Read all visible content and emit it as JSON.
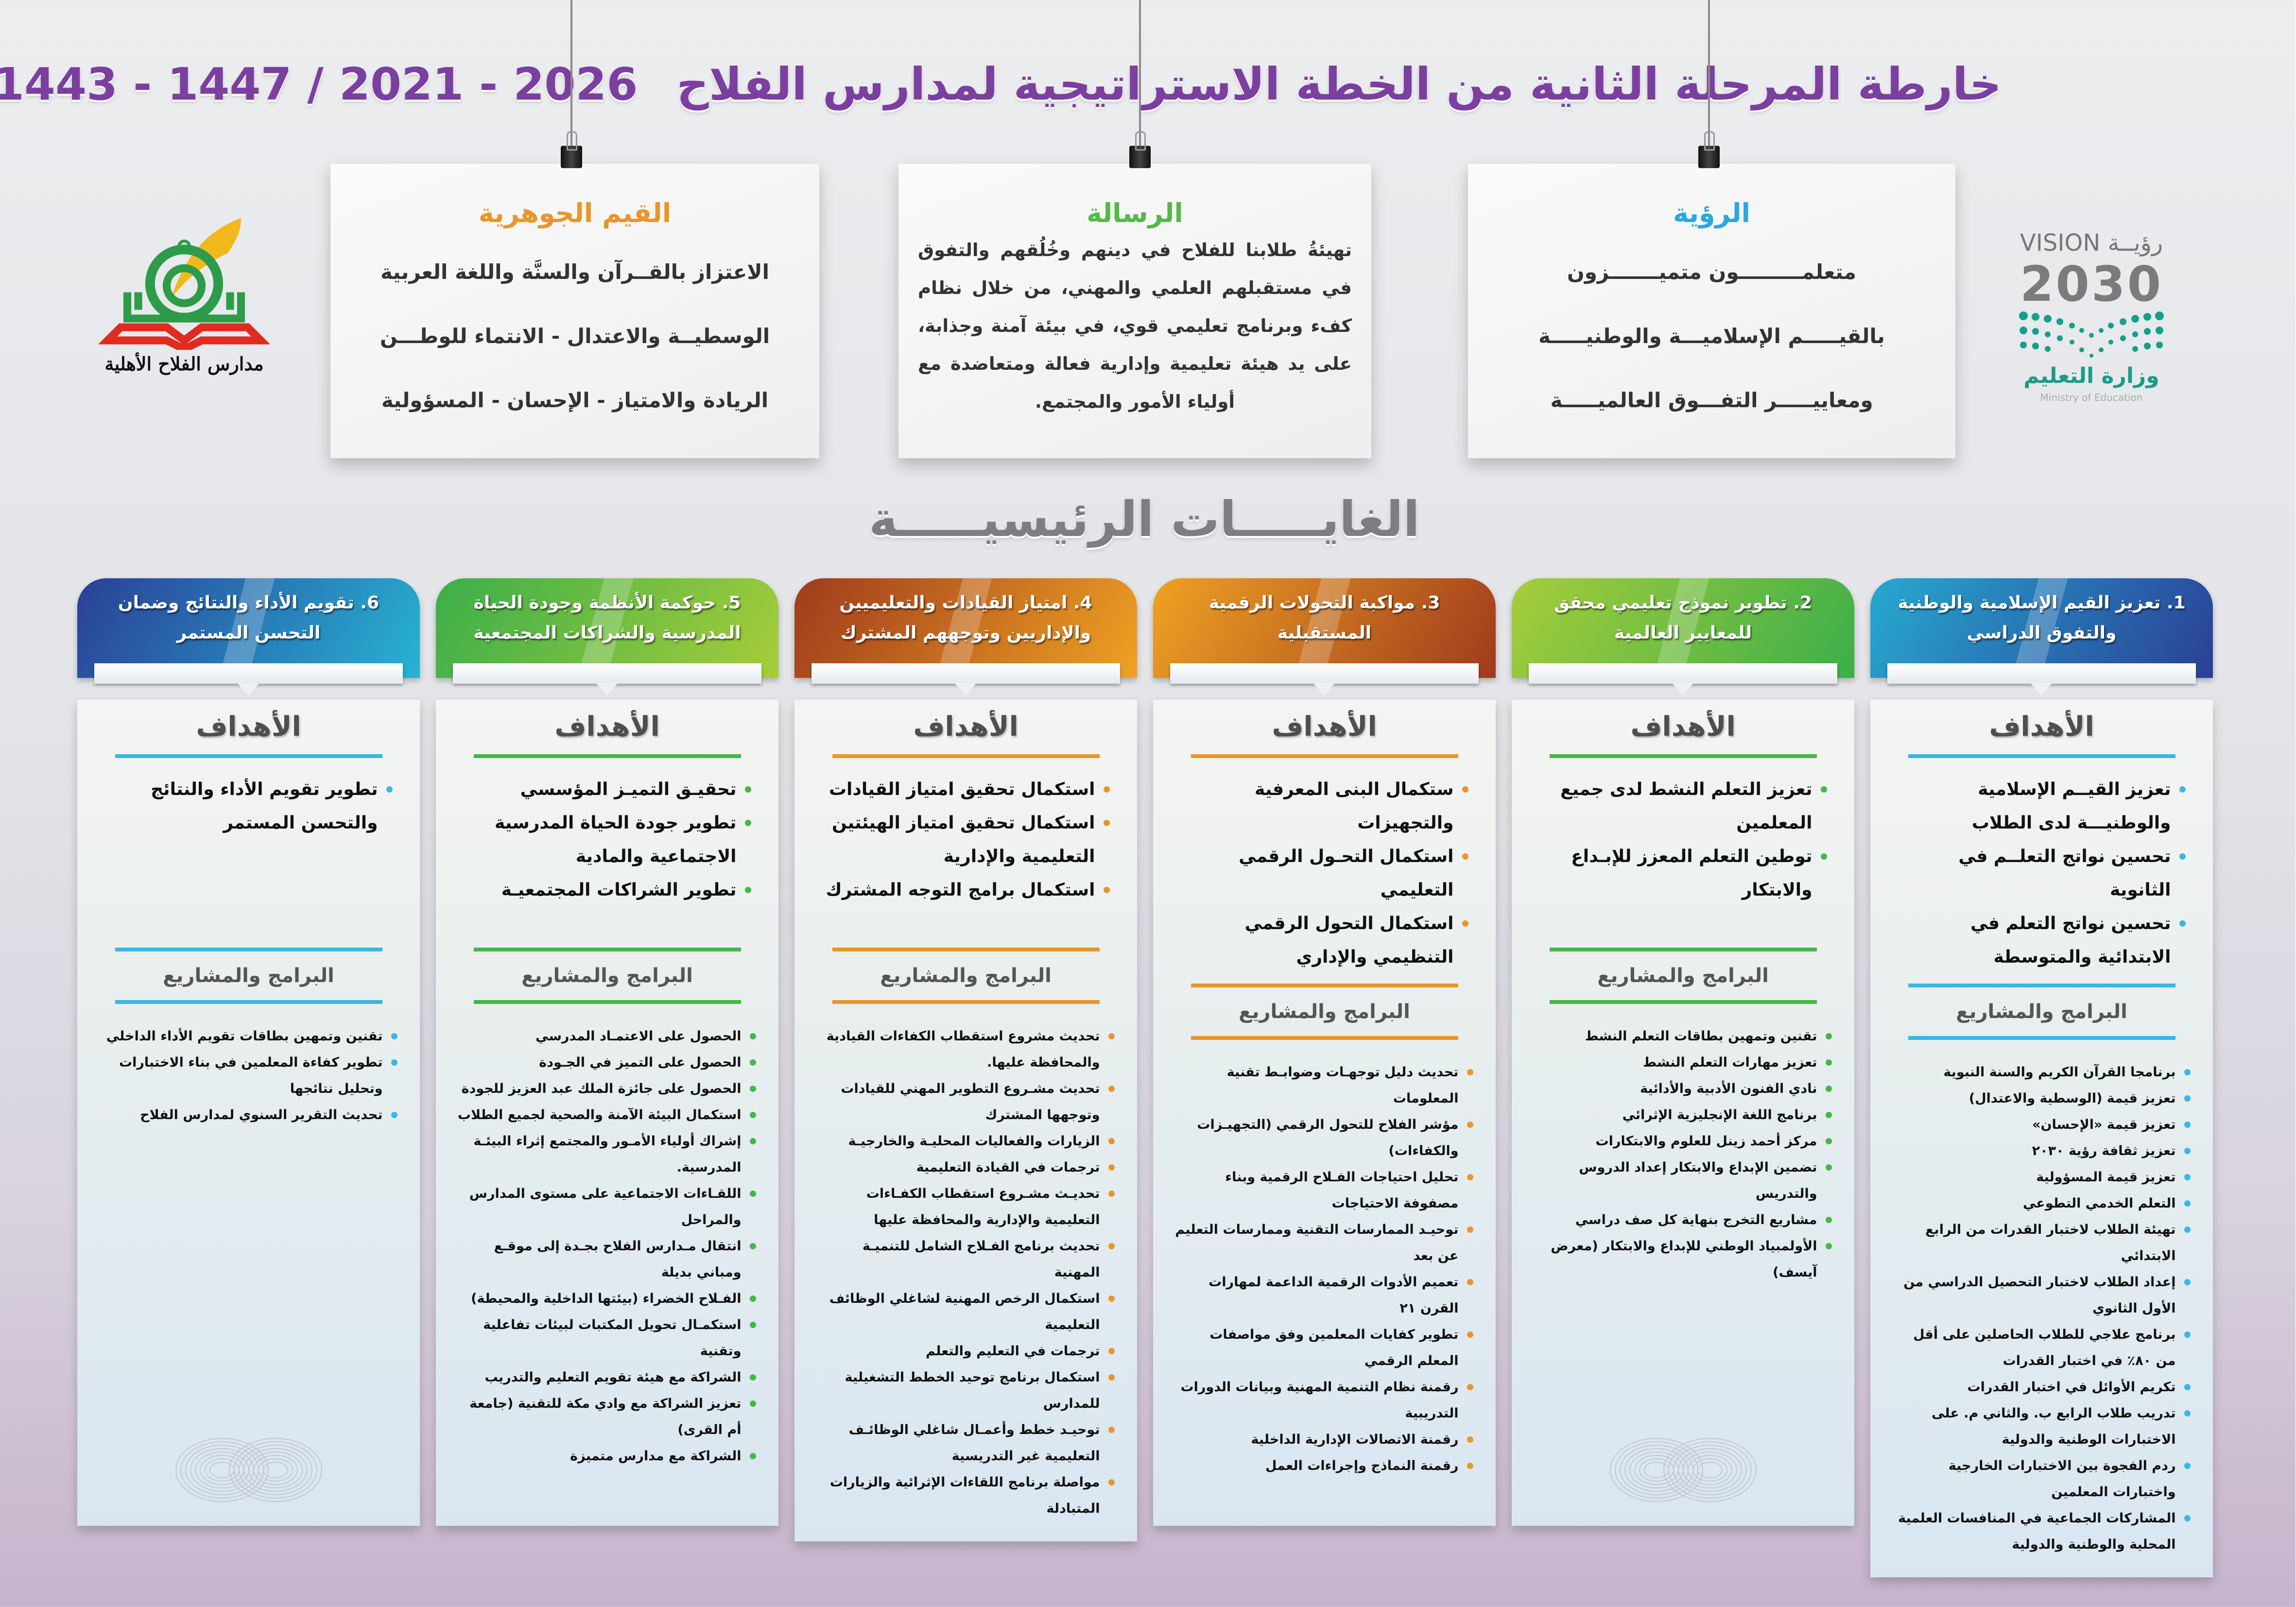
{
  "header": {
    "title": "خارطة المرحلة الثانية من الخطة الاستراتيجية لمدارس الفلاح",
    "years": "1443 - 1447 / 2021 - 2026"
  },
  "logos": {
    "vision": {
      "label_en": "VISION",
      "label_ar": "رؤيــة",
      "year": "2030",
      "ministry_ar": "وزارة التعليم",
      "ministry_en": "Ministry of Education"
    },
    "school": {
      "name": "مدارس الفلاح الأهلية",
      "colors": [
        "#2e9b4a",
        "#f2b91c",
        "#e02b20"
      ]
    }
  },
  "cards": {
    "vision": {
      "title": "الرؤية",
      "color": "#2aa7de",
      "lines": [
        "متعلمـــــــــون متميـــــــزون",
        "بالقيـــــم الإسلاميـــة والوطنيـــــة",
        "ومعاييـــــر التفـــوق العالميـــــة"
      ]
    },
    "mission": {
      "title": "الرسالة",
      "color": "#55b848",
      "text": "تهيئةُ طلابنا للفلاح في دينهم وخُلُقهم والتفوق في مستقبلهم العلمي والمهني، من خلال نظام كفء وبرنامج تعليمي قوي، في بيئة آمنة وجذابة، على يد هيئة تعليمية وإدارية فعالة ومتعاضدة مع أولياء الأمور والمجتمع."
    },
    "values": {
      "title": "القيم الجوهرية",
      "color": "#e8962a",
      "lines": [
        "الاعتزاز بالقــرآن والسنَّة واللغة العربية",
        "الوسطيــة والاعتدال  -  الانتماء للوطـــن",
        "الريادة والامتياز  -  الإحسان - المسؤولية"
      ]
    }
  },
  "section_title": "الغايـــــات الرئيسيـــــة",
  "labels": {
    "goals": "الأهداف",
    "programs": "البرامج والمشاريع"
  },
  "columns": [
    {
      "title": "1. تعزيز القيم الإسلامية والوطنية والتفوق الدراسي",
      "gradient": [
        "#27a9d0",
        "#2a3f96"
      ],
      "accent": "#3bb6e6",
      "goals": [
        "تعزيز القيــم الإسلامية والوطنيـــة لدى الطلاب",
        "تحسين نواتج التعلــم في الثانوية",
        "تحسين نواتج التعلم في الابتدائية والمتوسطة"
      ],
      "programs": [
        "برنامجا القرآن الكريم والسنة النبوية",
        "تعزيز قيمة (الوسطية والاعتدال)",
        "تعزيز قيمة «الإحسان»",
        "تعزيز ثقافة رؤية ٢٠٣٠",
        "تعزيز قيمة المسؤولية",
        "التعلم الخدمي التطوعي",
        "تهيئة الطلاب لاختبار القدرات من الرابع الابتدائي",
        "إعداد الطلاب لاختبار التحصيل الدراسي من الأول الثانوي",
        "برنامج علاجي للطلاب الحاصلين على أقل من ٨٠٪ في اختبار القدرات",
        "تكريم الأوائل في اختبار القدرات",
        "تدريب طلاب الرابع ب. والثاني م. على الاختبارات الوطنية والدولية",
        "ردم الفجوة بين الاختبارات الخارجية واختبارات المعلمين",
        "المشاركات الجماعية في المنافسات العلمية المحلية والوطنية والدولية"
      ]
    },
    {
      "title": "2. تطوير نموذج تعليمي محقق للمعايير العالمية",
      "gradient": [
        "#a6cd3a",
        "#3cae4a"
      ],
      "accent": "#46b649",
      "goals": [
        "تعزيز التعلم النشط لدى جميع المعلمين",
        "توطين التعلم المعزز للإبـداع والابتكار"
      ],
      "programs": [
        "تقنين وتمهين بطاقات التعلم النشط",
        "تعزيز مهارات التعلم النشط",
        "نادي الفنون الأدبية والأدائية",
        "برنامج اللغة الإنجليزية الإثرائي",
        "مركز أحمد زينل للعلوم والابتكارات",
        "تضمين الإبداع والابتكار إعداد الدروس والتدريس",
        "مشاريع التخرج بنهاية كل صف دراسي",
        "الأولمبياد الوطني للإبداع والابتكار (معرض آيسف)"
      ]
    },
    {
      "title": "3. مواكبة التحولات الرقمية المستقبلية",
      "gradient": [
        "#eea223",
        "#9f3b1d"
      ],
      "accent": "#e8962a",
      "goals": [
        "ستكمال البنى المعرفية والتجهيزات",
        "استكمال التحـول الرقمي التعليمي",
        "استكمال التحول الرقمي التنظيمي والإداري"
      ],
      "programs": [
        "تحديث دليل توجهـات وضوابـط تقنية المعلومات",
        "مؤشر الفلاح للتحول الرقمي (التجهيـزات والكفاءات)",
        "تحليل احتياجات الفـلاح الرقمية وبناء مصفوفة الاحتياجات",
        "توحيـد الممارسات التقنية وممارسات التعليم عن بعد",
        "تعميم الأدوات الرقمية الداعمة لمهارات القرن ٢١",
        "تطوير كفايات المعلمين وفق مواصفات المعلم الرقمي",
        "رقمنة نظام التنمية المهنية وبيانات الدورات التدريبية",
        "رقمنة الاتصالات الإدارية الداخلية",
        "رقمنة النماذج وإجراءات العمل"
      ]
    },
    {
      "title": "4. امتياز القيادات والتعليميين والإداريين وتوجههم المشترك",
      "gradient": [
        "#9f3b1d",
        "#eea223"
      ],
      "accent": "#e8962a",
      "goals": [
        "استكمال تحقيق امتياز القيادات",
        "استكمال تحقيق امتياز الهيئتين التعليمية والإدارية",
        "استكمال برامج التوجه المشترك"
      ],
      "programs": [
        "تحديث مشروع استقطاب الكفاءات القيادية والمحافظة عليها.",
        "تحديث مشـروع التطوير المهني للقيادات وتوجهها المشترك",
        "الزيارات والفعاليات المحليـة والخارجيـة",
        "ترجمات في القيادة التعليمية",
        "تحديـث مشـروع استقطاب الكفـاءات التعليمية والإدارية والمحافظة عليها",
        "تحديث برنامج الفـلاح الشامل للتنميـة المهنية",
        "استكمال الرخص المهنية لشاغلي الوظائف التعليمية",
        "ترجمات في التعليم والتعلم",
        "استكمال برنامج توحيد الخطط التشغيلية للمدارس",
        "توحيـد خطط وأعمـال شاغلي الوظائـف التعليمية غير التدريسية",
        "مواصلة برنامج اللقاءات الإثرائية والزيارات المتبادلة"
      ]
    },
    {
      "title": "5. حوكمة الأنظمة وجودة الحياة المدرسية والشراكات المجتمعية",
      "gradient": [
        "#3cae4a",
        "#a6cd3a"
      ],
      "accent": "#46b649",
      "goals": [
        "تحقيـق التميـز المؤسسي",
        "تطوير جودة الحياة المدرسية الاجتماعية والمادية",
        "تطوير الشراكات المجتمعيـة"
      ],
      "programs": [
        "الحصول على الاعتمـاد المدرسي",
        "الحصول على التميز في الجـودة",
        "الحصول على جائزة الملك عبد العزيز للجودة",
        "استكمال البيئة الآمنة والصحية لجميع الطلاب",
        "إشراك أولياء الأمـور والمجتمع إثراء البيئـة المدرسية.",
        "اللقـاءات الاجتماعية على مستوى المدارس والمراحل",
        "انتقال مـدارس الفلاح بجـدة إلى موقـع ومباني بديلة",
        "الفـلاح الخضراء (بيئتها الداخلية والمحيطة)",
        "استكمـال تحويل المكتبات لبيئات تفاعلية وتقنية",
        "الشراكة مع هيئة تقويم التعليم والتدريب",
        "تعزيز الشراكة مع وادي مكة للتقنية (جامعة أم القرى)",
        "الشراكة مع مدارس متميزة"
      ]
    },
    {
      "title": "6. تقويم الأداء والنتائج وضمان التحسن المستمر",
      "gradient": [
        "#2a3f96",
        "#27b3d4"
      ],
      "accent": "#3bb6e6",
      "goals": [
        "تطوير تقويم الأداء والنتائج والتحسن المستمر"
      ],
      "programs": [
        "تقنين وتمهين بطاقات تقويم الأداء الداخلي",
        "تطوير كفاءة المعلمين في بناء الاختبارات وتحليل نتائجها",
        "تحديث التقرير السنوي لمدارس الفلاح"
      ]
    }
  ]
}
